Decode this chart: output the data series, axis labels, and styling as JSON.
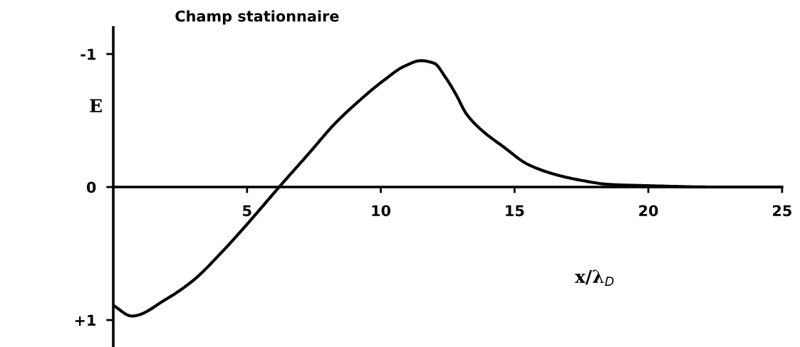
{
  "chart_data": {
    "type": "line",
    "title": "Champ stationnaire",
    "xlabel": "x/λ$_{D}$",
    "ylabel": "E",
    "x": [
      0,
      0.7,
      2.0,
      3.0,
      4.1,
      5.0,
      6.2,
      7.3,
      8.3,
      9.2,
      10.1,
      10.9,
      11.5,
      12.0,
      12.4,
      12.8,
      13.2,
      13.7,
      14.6,
      15.5,
      16.6,
      17.5,
      18.5,
      20.0,
      22.5,
      25
    ],
    "series": [
      {
        "color": "#000000",
        "values": [
          0.89,
          0.97,
          0.84,
          0.7,
          0.48,
          0.28,
          0,
          -0.25,
          -0.48,
          -0.65,
          -0.8,
          -0.91,
          -0.95,
          -0.93,
          -0.83,
          -0.7,
          -0.55,
          -0.44,
          -0.3,
          -0.17,
          -0.09,
          -0.05,
          -0.02,
          -0.01,
          0,
          0
        ]
      }
    ],
    "xlim": [
      0,
      25
    ],
    "xticks": [
      5,
      10,
      15,
      20,
      25
    ],
    "ylim": [
      1.2,
      -1.2
    ],
    "yticks": [
      -1,
      0,
      {
        "value": 1,
        "label": "+1"
      }
    ],
    "grid": false,
    "line_style": "solid"
  }
}
